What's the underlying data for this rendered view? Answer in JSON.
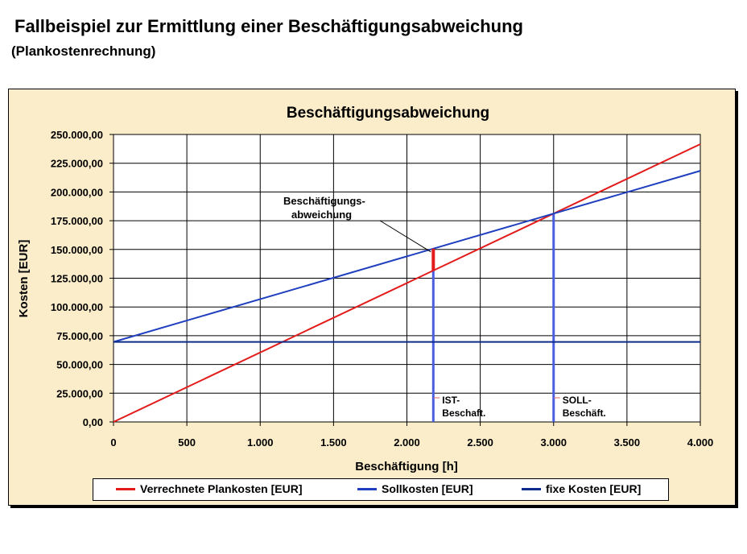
{
  "page": {
    "title": "Fallbeispiel zur Ermittlung einer Beschäftigungsabweichung",
    "subtitle": "(Plankostenrechnung)"
  },
  "colors": {
    "panel_background": "#fbedca",
    "verrechnete": "#e31b1b",
    "sollkosten": "#1f3fbf",
    "fixe": "#0b2c8c",
    "marker_ist": "#4a5ee0",
    "marker_soll": "#4a5ee0"
  },
  "chart_data": {
    "type": "line",
    "title": "Beschäftigungsabweichung",
    "xlabel": "Beschäftigung [h]",
    "ylabel": "Kosten [EUR]",
    "xlim": [
      0,
      4000
    ],
    "ylim": [
      0,
      250000
    ],
    "x_ticks": [
      "0",
      "500",
      "1.000",
      "1.500",
      "2.000",
      "2.500",
      "3.000",
      "3.500",
      "4.000"
    ],
    "y_ticks": [
      "0,00",
      "25.000,00",
      "50.000,00",
      "75.000,00",
      "100.000,00",
      "125.000,00",
      "150.000,00",
      "175.000,00",
      "200.000,00",
      "225.000,00",
      "250.000,00"
    ],
    "grid": true,
    "legend_position": "bottom",
    "series": [
      {
        "name": "Verrechnete Plankosten [EUR]",
        "x": [
          0,
          4000
        ],
        "y": [
          0,
          241600
        ]
      },
      {
        "name": "Sollkosten [EUR]",
        "x": [
          0,
          4000
        ],
        "y": [
          69600,
          218400
        ]
      },
      {
        "name": "fixe Kosten [EUR]",
        "x": [
          0,
          4000
        ],
        "y": [
          69600,
          69600
        ]
      }
    ],
    "markers": [
      {
        "label": "IST-\nBeschaft.",
        "x": 2180
      },
      {
        "label": "SOLL-\nBeschäft.",
        "x": 3000
      }
    ],
    "deviation": {
      "x": 2180,
      "label": "Beschäftigungs-\nabweichung"
    }
  }
}
